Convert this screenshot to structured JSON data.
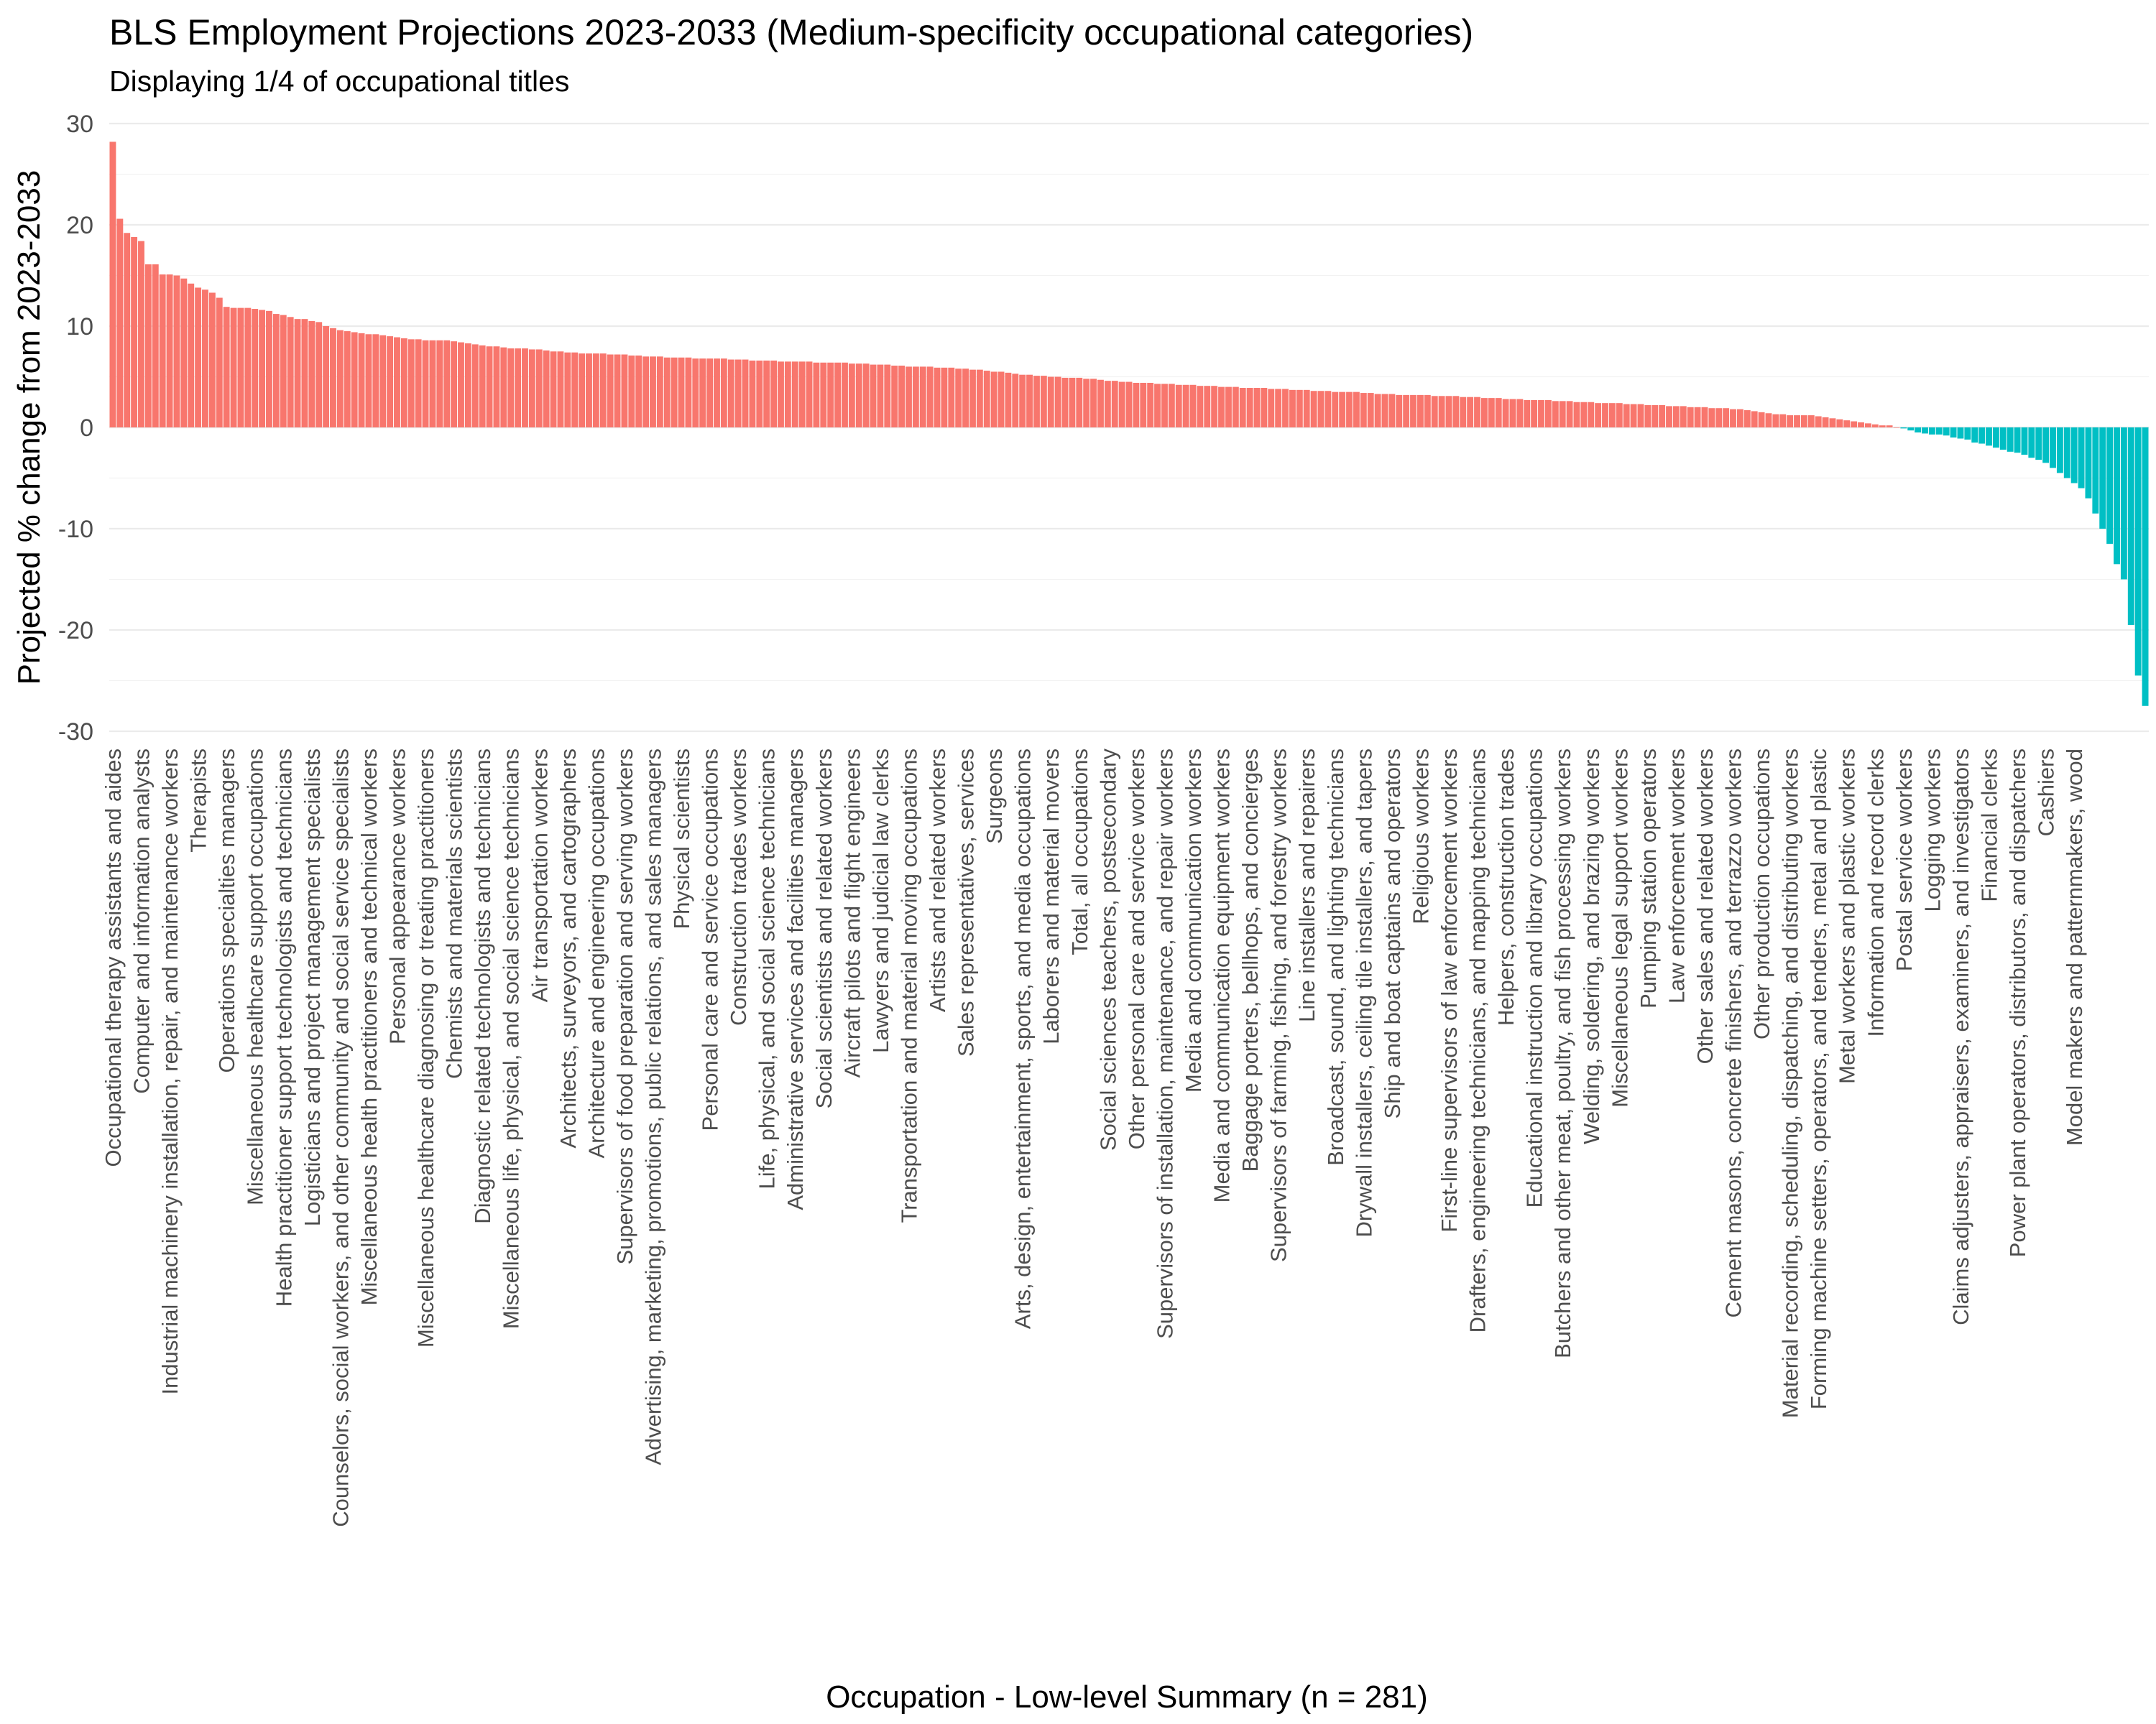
{
  "chart_data": {
    "type": "bar",
    "title": "BLS Employment Projections 2023-2033 (Medium-specificity occupational categories)",
    "subtitle": "Displaying 1/4 of occupational titles",
    "xlabel": "Occupation - Low-level Summary (n = 281)",
    "ylabel": "Projected % change from 2023-2033",
    "ylim": [
      -30,
      30
    ],
    "yticks": [
      30,
      20,
      10,
      0,
      -10,
      -20,
      -30
    ],
    "ytick_labels": [
      "30",
      "20",
      "10",
      "0",
      "-10",
      "-20",
      "-30"
    ],
    "grid": true,
    "colors": {
      "positive": "#F8766D",
      "negative": "#00BFC4"
    },
    "n_bars": 281,
    "label_step": 4,
    "values": [
      28.2,
      20.6,
      19.2,
      18.8,
      18.4,
      16.1,
      16.1,
      15.1,
      15.1,
      15.0,
      14.7,
      14.2,
      13.8,
      13.6,
      13.3,
      12.8,
      11.9,
      11.8,
      11.8,
      11.8,
      11.7,
      11.6,
      11.5,
      11.2,
      11.1,
      10.9,
      10.7,
      10.7,
      10.5,
      10.4,
      10.0,
      9.8,
      9.6,
      9.5,
      9.4,
      9.3,
      9.2,
      9.2,
      9.1,
      9.0,
      8.9,
      8.8,
      8.7,
      8.7,
      8.6,
      8.6,
      8.6,
      8.6,
      8.5,
      8.4,
      8.3,
      8.2,
      8.1,
      8.0,
      8.0,
      7.9,
      7.8,
      7.8,
      7.8,
      7.7,
      7.7,
      7.6,
      7.5,
      7.5,
      7.4,
      7.4,
      7.3,
      7.3,
      7.3,
      7.3,
      7.2,
      7.2,
      7.2,
      7.1,
      7.1,
      7.0,
      7.0,
      7.0,
      6.9,
      6.9,
      6.9,
      6.9,
      6.8,
      6.8,
      6.8,
      6.8,
      6.8,
      6.7,
      6.7,
      6.7,
      6.6,
      6.6,
      6.6,
      6.6,
      6.5,
      6.5,
      6.5,
      6.5,
      6.5,
      6.4,
      6.4,
      6.4,
      6.4,
      6.4,
      6.3,
      6.3,
      6.3,
      6.2,
      6.2,
      6.2,
      6.1,
      6.1,
      6.0,
      6.0,
      6.0,
      6.0,
      5.9,
      5.9,
      5.9,
      5.8,
      5.8,
      5.7,
      5.7,
      5.6,
      5.5,
      5.5,
      5.4,
      5.3,
      5.2,
      5.2,
      5.1,
      5.1,
      5.0,
      5.0,
      4.9,
      4.9,
      4.9,
      4.8,
      4.8,
      4.7,
      4.6,
      4.6,
      4.5,
      4.5,
      4.4,
      4.4,
      4.4,
      4.3,
      4.3,
      4.3,
      4.2,
      4.2,
      4.2,
      4.1,
      4.1,
      4.1,
      4.0,
      4.0,
      4.0,
      3.9,
      3.9,
      3.9,
      3.9,
      3.8,
      3.8,
      3.8,
      3.7,
      3.7,
      3.7,
      3.6,
      3.6,
      3.6,
      3.5,
      3.5,
      3.5,
      3.5,
      3.4,
      3.4,
      3.3,
      3.3,
      3.3,
      3.2,
      3.2,
      3.2,
      3.2,
      3.2,
      3.1,
      3.1,
      3.1,
      3.1,
      3.0,
      3.0,
      3.0,
      2.9,
      2.9,
      2.9,
      2.8,
      2.8,
      2.8,
      2.7,
      2.7,
      2.7,
      2.7,
      2.6,
      2.6,
      2.6,
      2.5,
      2.5,
      2.5,
      2.4,
      2.4,
      2.4,
      2.4,
      2.3,
      2.3,
      2.3,
      2.2,
      2.2,
      2.2,
      2.1,
      2.1,
      2.1,
      2.0,
      2.0,
      2.0,
      1.9,
      1.9,
      1.9,
      1.8,
      1.8,
      1.7,
      1.6,
      1.5,
      1.4,
      1.3,
      1.3,
      1.2,
      1.2,
      1.2,
      1.2,
      1.1,
      1.0,
      0.9,
      0.8,
      0.7,
      0.6,
      0.5,
      0.4,
      0.3,
      0.2,
      0.2,
      0.0,
      -0.1,
      -0.3,
      -0.5,
      -0.6,
      -0.7,
      -0.7,
      -0.8,
      -1.0,
      -1.1,
      -1.2,
      -1.5,
      -1.6,
      -1.8,
      -2.0,
      -2.2,
      -2.4,
      -2.5,
      -2.7,
      -3.0,
      -3.2,
      -3.5,
      -4.0,
      -4.5,
      -5.0,
      -5.5,
      -6.0,
      -7.0,
      -8.5,
      -10.0,
      -11.5,
      -13.5,
      -15.0,
      -19.5,
      -24.5,
      -27.5
    ],
    "tick_labels": [
      "Occupational therapy assistants and aides",
      "Computer and information analysts",
      "Industrial machinery installation, repair, and maintenance workers",
      "Therapists",
      "Operations specialties managers",
      "Miscellaneous healthcare support occupations",
      "Health practitioner support technologists and technicians",
      "Logisticians and project management specialists",
      "Counselors, social workers, and other community and social service specialists",
      "Miscellaneous health practitioners and technical workers",
      "Personal appearance workers",
      "Miscellaneous healthcare diagnosing or treating practitioners",
      "Chemists and materials scientists",
      "Diagnostic related technologists and technicians",
      "Miscellaneous life, physical, and social science technicians",
      "Air transportation workers",
      "Architects, surveyors, and cartographers",
      "Architecture and engineering occupations",
      "Supervisors of food preparation and serving workers",
      "Advertising, marketing, promotions, public relations, and sales managers",
      "Physical scientists",
      "Personal care and service occupations",
      "Construction trades workers",
      "Life, physical, and social science technicians",
      "Administrative services and facilities managers",
      "Social scientists and related workers",
      "Aircraft pilots and flight engineers",
      "Lawyers and judicial law clerks",
      "Transportation and material moving occupations",
      "Artists and related workers",
      "Sales representatives, services",
      "Surgeons",
      "Arts, design, entertainment, sports, and media occupations",
      "Laborers and material movers",
      "Total, all occupations",
      "Social sciences teachers, postsecondary",
      "Other personal care and service workers",
      "Supervisors of installation, maintenance, and repair workers",
      "Media and communication workers",
      "Media and communication equipment workers",
      "Baggage porters, bellhops, and concierges",
      "Supervisors of farming, fishing, and forestry workers",
      "Line installers and repairers",
      "Broadcast, sound, and lighting technicians",
      "Drywall installers, ceiling tile installers, and tapers",
      "Ship and boat captains and operators",
      "Religious workers",
      "First-line supervisors of law enforcement workers",
      "Drafters, engineering technicians, and mapping technicians",
      "Helpers, construction trades",
      "Educational instruction and library occupations",
      "Butchers and other meat, poultry, and fish processing workers",
      "Welding, soldering, and brazing workers",
      "Miscellaneous legal support workers",
      "Pumping station operators",
      "Law enforcement workers",
      "Other sales and related workers",
      "Cement masons, concrete finishers, and terrazzo workers",
      "Other production occupations",
      "Material recording, scheduling, dispatching, and distributing workers",
      "Forming machine setters, operators, and tenders, metal and plastic",
      "Metal workers and plastic workers",
      "Information and record clerks",
      "Postal service workers",
      "Logging workers",
      "Claims adjusters, appraisers, examiners, and investigators",
      "Financial clerks",
      "Power plant operators, distributors, and dispatchers",
      "Cashiers",
      "Model makers and patternmakers, wood"
    ]
  }
}
